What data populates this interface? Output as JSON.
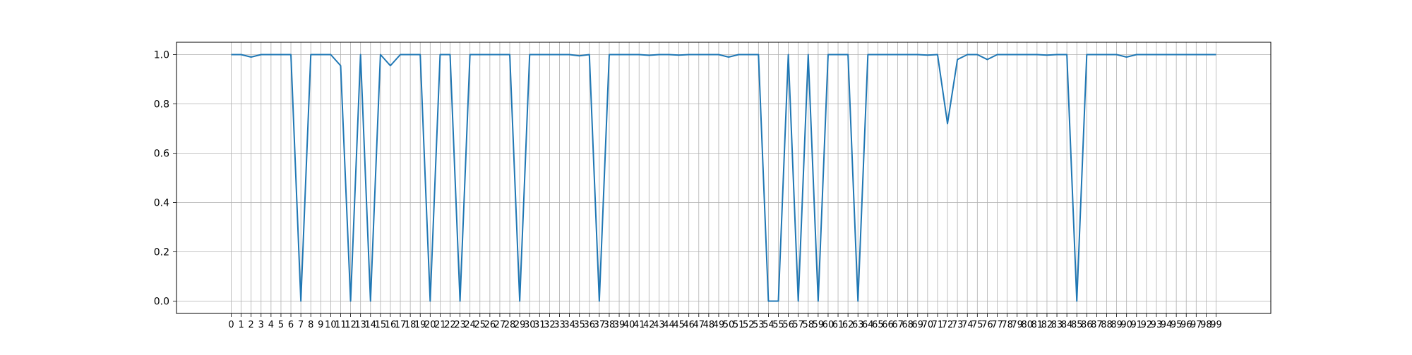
{
  "chart_data": {
    "type": "line",
    "title": "",
    "xlabel": "",
    "ylabel": "",
    "xlim": [
      -5.5,
      104.5
    ],
    "ylim": [
      -0.05,
      1.05
    ],
    "grid": true,
    "line_color": "#1f77b4",
    "grid_color": "#b0b0b0",
    "x": [
      0,
      1,
      2,
      3,
      4,
      5,
      6,
      7,
      8,
      9,
      10,
      11,
      12,
      13,
      14,
      15,
      16,
      17,
      18,
      19,
      20,
      21,
      22,
      23,
      24,
      25,
      26,
      27,
      28,
      29,
      30,
      31,
      32,
      33,
      34,
      35,
      36,
      37,
      38,
      39,
      40,
      41,
      42,
      43,
      44,
      45,
      46,
      47,
      48,
      49,
      50,
      51,
      52,
      53,
      54,
      55,
      56,
      57,
      58,
      59,
      60,
      61,
      62,
      63,
      64,
      65,
      66,
      67,
      68,
      69,
      70,
      71,
      72,
      73,
      74,
      75,
      76,
      77,
      78,
      79,
      80,
      81,
      82,
      83,
      84,
      85,
      86,
      87,
      88,
      89,
      90,
      91,
      92,
      93,
      94,
      95,
      96,
      97,
      98,
      99
    ],
    "x_tick_labels": [
      "0",
      "1",
      "2",
      "3",
      "4",
      "5",
      "6",
      "7",
      "8",
      "9",
      "10",
      "11",
      "12",
      "13",
      "14",
      "15",
      "16",
      "17",
      "18",
      "19",
      "20",
      "21",
      "22",
      "23",
      "24",
      "25",
      "26",
      "27",
      "28",
      "29",
      "30",
      "31",
      "32",
      "33",
      "34",
      "35",
      "36",
      "37",
      "38",
      "39",
      "40",
      "41",
      "42",
      "43",
      "44",
      "45",
      "46",
      "47",
      "48",
      "49",
      "50",
      "51",
      "52",
      "53",
      "54",
      "55",
      "56",
      "57",
      "58",
      "59",
      "60",
      "61",
      "62",
      "63",
      "64",
      "65",
      "66",
      "67",
      "68",
      "69",
      "70",
      "71",
      "72",
      "73",
      "74",
      "75",
      "76",
      "77",
      "78",
      "79",
      "80",
      "81",
      "82",
      "83",
      "84",
      "85",
      "86",
      "87",
      "88",
      "89",
      "90",
      "91",
      "92",
      "93",
      "94",
      "95",
      "96",
      "97",
      "98",
      "99"
    ],
    "y_ticks": [
      0.0,
      0.2,
      0.4,
      0.6,
      0.8,
      1.0
    ],
    "y_tick_labels": [
      "0.0",
      "0.2",
      "0.4",
      "0.6",
      "0.8",
      "1.0"
    ],
    "series": [
      {
        "values": [
          1.0,
          1.0,
          0.99,
          1.0,
          1.0,
          1.0,
          1.0,
          0.0,
          1.0,
          1.0,
          1.0,
          0.955,
          0.0,
          1.0,
          0.0,
          1.0,
          0.955,
          1.0,
          1.0,
          1.0,
          0.0,
          1.0,
          1.0,
          0.0,
          1.0,
          1.0,
          1.0,
          1.0,
          1.0,
          0.0,
          1.0,
          1.0,
          1.0,
          1.0,
          1.0,
          0.995,
          1.0,
          0.0,
          1.0,
          1.0,
          1.0,
          1.0,
          0.997,
          1.0,
          1.0,
          0.998,
          1.0,
          1.0,
          1.0,
          1.0,
          0.99,
          1.0,
          1.0,
          1.0,
          0.0,
          0.0,
          1.0,
          0.0,
          1.0,
          0.0,
          1.0,
          1.0,
          1.0,
          0.0,
          1.0,
          1.0,
          1.0,
          1.0,
          1.0,
          1.0,
          0.998,
          1.0,
          0.72,
          0.98,
          1.0,
          1.0,
          0.98,
          1.0,
          1.0,
          1.0,
          1.0,
          1.0,
          0.998,
          1.0,
          1.0,
          0.0,
          1.0,
          1.0,
          1.0,
          1.0,
          0.99,
          1.0,
          1.0,
          1.0,
          1.0,
          1.0,
          1.0,
          1.0,
          1.0,
          1.0
        ]
      }
    ]
  }
}
